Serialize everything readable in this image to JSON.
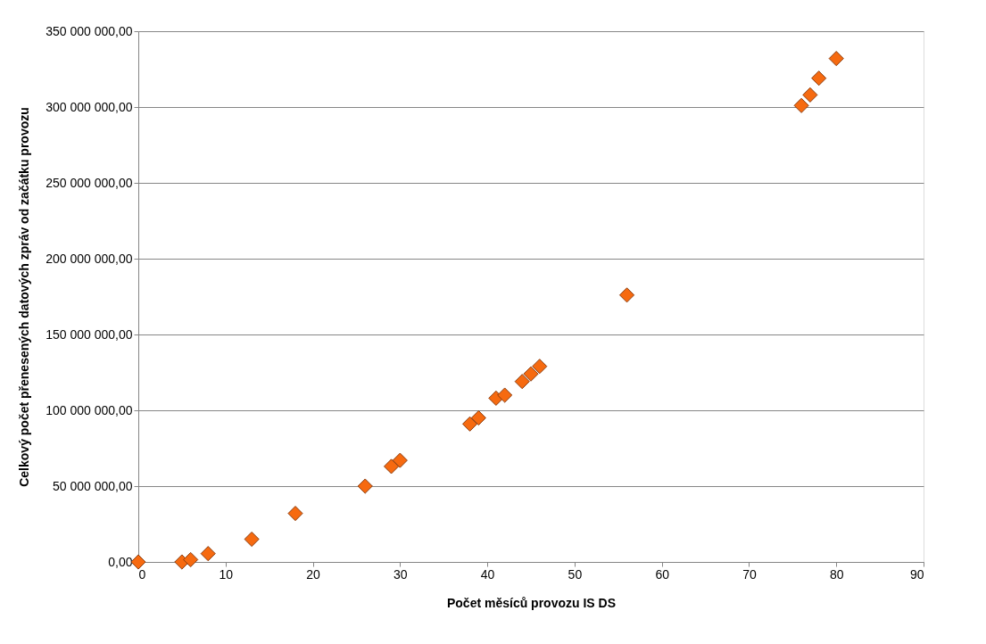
{
  "chart_data": {
    "type": "scatter",
    "xlabel": "Počet měsíců provozu IS DS",
    "ylabel": "Celkový počet přenesených datových zpráv od začátku provozu",
    "x": [
      0,
      5,
      6,
      8,
      13,
      18,
      26,
      29,
      30,
      38,
      39,
      41,
      42,
      44,
      45,
      46,
      56,
      76,
      77,
      78,
      80
    ],
    "series": [
      {
        "color": "#f66a10",
        "values": [
          0,
          0,
          1500000,
          5500000,
          15000000,
          32000000,
          50000000,
          63000000,
          67000000,
          91000000,
          95000000,
          108000000,
          110000000,
          119000000,
          124000000,
          129000000,
          176000000,
          301000000,
          308000000,
          319000000,
          332000000
        ]
      }
    ],
    "xlim": [
      0,
      90
    ],
    "xticks": [
      0,
      10,
      20,
      30,
      40,
      50,
      60,
      70,
      80,
      90
    ],
    "ylim": [
      0,
      350000000
    ],
    "yticks": [
      {
        "value": 0,
        "label": "0,00"
      },
      {
        "value": 50000000,
        "label": "50 000 000,00"
      },
      {
        "value": 100000000,
        "label": "100 000 000,00"
      },
      {
        "value": 150000000,
        "label": "150 000 000,00"
      },
      {
        "value": 200000000,
        "label": "200 000 000,00"
      },
      {
        "value": 250000000,
        "label": "250 000 000,00"
      },
      {
        "value": 300000000,
        "label": "300 000 000,00"
      },
      {
        "value": 350000000,
        "label": "350 000 000,00"
      }
    ],
    "grid": "y",
    "marker": "diamond"
  }
}
